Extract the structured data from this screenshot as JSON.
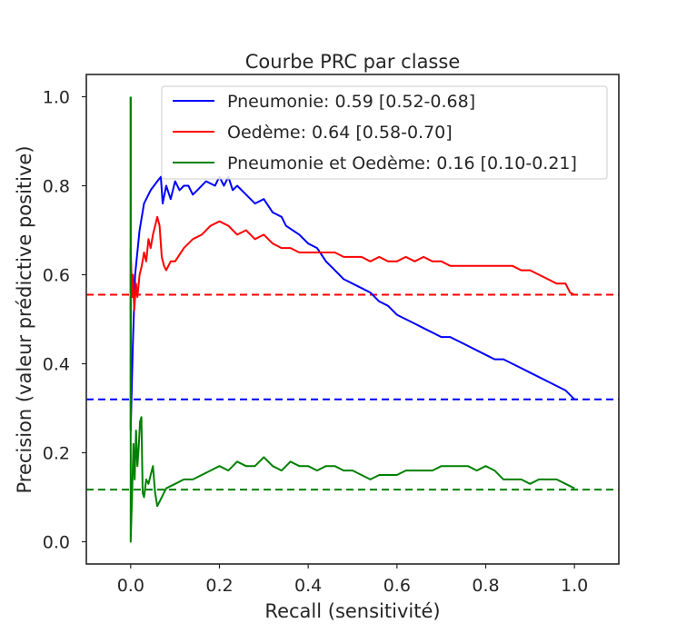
{
  "chart_data": {
    "type": "line",
    "title": "Courbe PRC par classe",
    "xlabel": "Recall (sensitivité)",
    "ylabel": "Precision (valeur prédictive positive)",
    "xlim": [
      -0.1,
      1.1
    ],
    "ylim": [
      -0.05,
      1.05
    ],
    "xticks": [
      0.0,
      0.2,
      0.4,
      0.6,
      0.8,
      1.0
    ],
    "xtick_labels": [
      "0.0",
      "0.2",
      "0.4",
      "0.6",
      "0.8",
      "1.0"
    ],
    "yticks": [
      0.0,
      0.2,
      0.4,
      0.6,
      0.8,
      1.0
    ],
    "ytick_labels": [
      "0.0",
      "0.2",
      "0.4",
      "0.6",
      "0.8",
      "1.0"
    ],
    "grid": false,
    "legend_position": "upper right",
    "series": [
      {
        "name": "Pneumonie: 0.59 [0.52-0.68]",
        "color": "#0000ff",
        "baseline": 0.32,
        "x": [
          0.0,
          0.0,
          0.005,
          0.01,
          0.02,
          0.03,
          0.045,
          0.06,
          0.068,
          0.072,
          0.08,
          0.09,
          0.1,
          0.11,
          0.12,
          0.13,
          0.14,
          0.15,
          0.17,
          0.19,
          0.2,
          0.21,
          0.22,
          0.23,
          0.24,
          0.26,
          0.28,
          0.3,
          0.32,
          0.34,
          0.35,
          0.38,
          0.4,
          0.42,
          0.44,
          0.46,
          0.48,
          0.5,
          0.52,
          0.54,
          0.56,
          0.58,
          0.6,
          0.62,
          0.64,
          0.66,
          0.68,
          0.7,
          0.72,
          0.74,
          0.76,
          0.78,
          0.8,
          0.82,
          0.84,
          0.86,
          0.88,
          0.9,
          0.92,
          0.94,
          0.96,
          0.98,
          1.0
        ],
        "y": [
          1.0,
          0.25,
          0.45,
          0.6,
          0.7,
          0.76,
          0.79,
          0.81,
          0.82,
          0.76,
          0.8,
          0.77,
          0.81,
          0.79,
          0.8,
          0.8,
          0.78,
          0.79,
          0.81,
          0.8,
          0.82,
          0.8,
          0.82,
          0.79,
          0.8,
          0.78,
          0.76,
          0.77,
          0.74,
          0.73,
          0.71,
          0.69,
          0.67,
          0.66,
          0.63,
          0.61,
          0.59,
          0.58,
          0.57,
          0.56,
          0.54,
          0.53,
          0.51,
          0.5,
          0.49,
          0.48,
          0.47,
          0.46,
          0.46,
          0.45,
          0.44,
          0.43,
          0.42,
          0.41,
          0.41,
          0.4,
          0.39,
          0.38,
          0.37,
          0.36,
          0.35,
          0.34,
          0.32
        ]
      },
      {
        "name": "Oedème: 0.64 [0.58-0.70]",
        "color": "#ff0000",
        "baseline": 0.555,
        "x": [
          0.0,
          0.0,
          0.003,
          0.005,
          0.008,
          0.012,
          0.015,
          0.02,
          0.025,
          0.03,
          0.035,
          0.04,
          0.045,
          0.05,
          0.055,
          0.06,
          0.065,
          0.07,
          0.075,
          0.08,
          0.09,
          0.1,
          0.12,
          0.14,
          0.16,
          0.18,
          0.2,
          0.22,
          0.24,
          0.26,
          0.28,
          0.3,
          0.32,
          0.34,
          0.36,
          0.38,
          0.4,
          0.42,
          0.44,
          0.46,
          0.48,
          0.5,
          0.52,
          0.54,
          0.56,
          0.58,
          0.6,
          0.62,
          0.64,
          0.66,
          0.68,
          0.7,
          0.72,
          0.74,
          0.76,
          0.78,
          0.8,
          0.82,
          0.84,
          0.86,
          0.88,
          0.9,
          0.92,
          0.94,
          0.96,
          0.98,
          0.99,
          1.0
        ],
        "y": [
          0.5,
          0.66,
          0.55,
          0.6,
          0.52,
          0.58,
          0.55,
          0.6,
          0.62,
          0.65,
          0.63,
          0.68,
          0.66,
          0.69,
          0.71,
          0.73,
          0.71,
          0.64,
          0.62,
          0.61,
          0.63,
          0.63,
          0.66,
          0.68,
          0.69,
          0.71,
          0.72,
          0.71,
          0.69,
          0.7,
          0.68,
          0.69,
          0.67,
          0.66,
          0.66,
          0.65,
          0.65,
          0.65,
          0.65,
          0.65,
          0.64,
          0.64,
          0.64,
          0.63,
          0.64,
          0.63,
          0.63,
          0.64,
          0.63,
          0.64,
          0.63,
          0.63,
          0.62,
          0.62,
          0.62,
          0.62,
          0.62,
          0.62,
          0.62,
          0.62,
          0.61,
          0.61,
          0.6,
          0.59,
          0.58,
          0.58,
          0.56,
          0.555
        ]
      },
      {
        "name": "Pneumonie et Oedème: 0.16 [0.10-0.21]",
        "color": "#008000",
        "baseline": 0.117,
        "x": [
          0.0,
          0.0,
          0.0,
          0.003,
          0.006,
          0.009,
          0.012,
          0.015,
          0.018,
          0.021,
          0.024,
          0.027,
          0.03,
          0.035,
          0.04,
          0.045,
          0.05,
          0.055,
          0.06,
          0.08,
          0.1,
          0.12,
          0.14,
          0.16,
          0.18,
          0.2,
          0.22,
          0.24,
          0.26,
          0.28,
          0.3,
          0.32,
          0.34,
          0.36,
          0.38,
          0.4,
          0.42,
          0.44,
          0.46,
          0.48,
          0.5,
          0.52,
          0.54,
          0.56,
          0.58,
          0.6,
          0.62,
          0.64,
          0.66,
          0.68,
          0.7,
          0.72,
          0.74,
          0.76,
          0.78,
          0.8,
          0.82,
          0.84,
          0.86,
          0.88,
          0.9,
          0.92,
          0.94,
          0.96,
          0.98,
          1.0
        ],
        "y": [
          1.0,
          0.0,
          0.0,
          0.1,
          0.22,
          0.14,
          0.25,
          0.17,
          0.21,
          0.27,
          0.28,
          0.11,
          0.1,
          0.14,
          0.13,
          0.15,
          0.17,
          0.11,
          0.08,
          0.12,
          0.13,
          0.14,
          0.14,
          0.15,
          0.16,
          0.17,
          0.16,
          0.18,
          0.17,
          0.17,
          0.19,
          0.17,
          0.16,
          0.18,
          0.17,
          0.17,
          0.16,
          0.17,
          0.17,
          0.16,
          0.16,
          0.15,
          0.14,
          0.15,
          0.15,
          0.15,
          0.16,
          0.16,
          0.16,
          0.16,
          0.17,
          0.17,
          0.17,
          0.17,
          0.16,
          0.17,
          0.16,
          0.14,
          0.14,
          0.14,
          0.13,
          0.14,
          0.14,
          0.14,
          0.13,
          0.12
        ]
      }
    ]
  }
}
